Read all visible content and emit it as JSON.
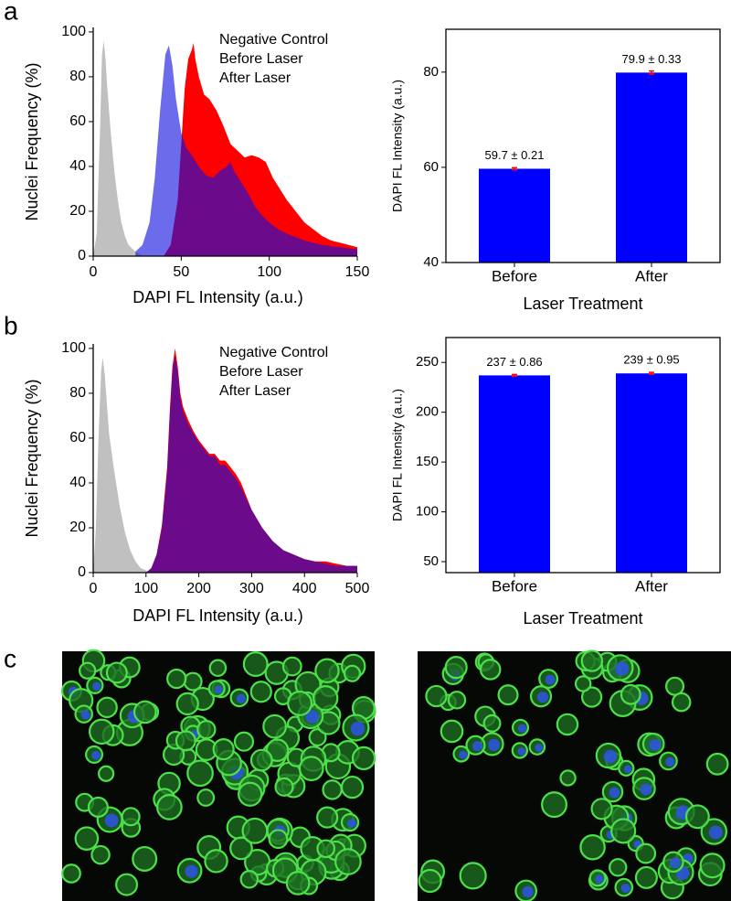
{
  "panel_labels": [
    "a",
    "b",
    "c"
  ],
  "chart_data": [
    {
      "type": "area",
      "xlabel": "DAPI FL Intensity (a.u.)",
      "ylabel": "Nuclei Frequency (%)",
      "xlim": [
        0,
        150
      ],
      "xticks": [
        0,
        50,
        100,
        150
      ],
      "ylim": [
        0,
        102
      ],
      "yticks": [
        0,
        20,
        40,
        60,
        80,
        100
      ],
      "series": [
        {
          "name": "Negative Control",
          "color": "#c0c0c0",
          "x": [
            0,
            2,
            4,
            5,
            6,
            7,
            8,
            10,
            12,
            14,
            16,
            18,
            20,
            24,
            28
          ],
          "values": [
            0,
            10,
            60,
            90,
            96,
            88,
            75,
            55,
            38,
            25,
            15,
            9,
            5,
            2,
            0
          ]
        },
        {
          "name": "Before Laser",
          "color": "#1010e0",
          "x": [
            24,
            28,
            32,
            35,
            38,
            41,
            43,
            45,
            47,
            50,
            53,
            56,
            60,
            64,
            68,
            72,
            76,
            78,
            80,
            84,
            88,
            92,
            96,
            100,
            105,
            110,
            120,
            130,
            140,
            150
          ],
          "values": [
            2,
            5,
            15,
            35,
            65,
            90,
            94,
            85,
            70,
            55,
            48,
            45,
            40,
            36,
            35,
            38,
            40,
            42,
            38,
            33,
            28,
            22,
            18,
            15,
            12,
            10,
            7,
            5,
            4,
            3
          ]
        },
        {
          "name": "After Laser",
          "color": "#ff0000",
          "x": [
            40,
            44,
            48,
            50,
            52,
            54,
            56,
            57,
            58,
            60,
            63,
            66,
            70,
            74,
            78,
            82,
            86,
            90,
            94,
            98,
            102,
            106,
            110,
            115,
            120,
            125,
            130,
            135,
            140,
            145,
            150
          ],
          "values": [
            0,
            5,
            25,
            50,
            75,
            88,
            92,
            95,
            88,
            80,
            72,
            70,
            65,
            58,
            50,
            47,
            44,
            45,
            44,
            42,
            35,
            30,
            25,
            20,
            15,
            12,
            9,
            7,
            6,
            5,
            4
          ]
        }
      ]
    },
    {
      "type": "bar",
      "xlabel": "Laser Treatment",
      "ylabel": "DAPI FL Intensity (a.u.)",
      "categories": [
        "Before",
        "After"
      ],
      "values": [
        59.7,
        79.9
      ],
      "errors": [
        0.21,
        0.33
      ],
      "value_labels": [
        "59.7 ± 0.21",
        "79.9 ± 0.33"
      ],
      "color": "#0000ff",
      "error_color": "#ff0000",
      "ylim": [
        40,
        89
      ],
      "yticks": [
        40,
        60,
        80
      ]
    },
    {
      "type": "area",
      "xlabel": "DAPI FL Intensity (a.u.)",
      "ylabel": "Nuclei Frequency (%)",
      "xlim": [
        0,
        500
      ],
      "xticks": [
        0,
        100,
        200,
        300,
        400,
        500
      ],
      "ylim": [
        0,
        102
      ],
      "yticks": [
        0,
        20,
        40,
        60,
        80,
        100
      ],
      "series": [
        {
          "name": "Negative Control",
          "color": "#c0c0c0",
          "x": [
            0,
            5,
            10,
            15,
            18,
            22,
            26,
            30,
            40,
            50,
            60,
            70,
            80,
            90,
            100,
            110
          ],
          "values": [
            0,
            20,
            60,
            90,
            96,
            88,
            75,
            62,
            45,
            30,
            18,
            10,
            5,
            2,
            1,
            0
          ]
        },
        {
          "name": "Before Laser",
          "color": "#1010e0",
          "x": [
            100,
            110,
            120,
            130,
            140,
            145,
            150,
            155,
            160,
            165,
            170,
            180,
            190,
            200,
            210,
            220,
            230,
            240,
            250,
            260,
            270,
            280,
            290,
            300,
            320,
            340,
            360,
            380,
            400,
            420,
            440,
            460,
            480,
            500
          ],
          "values": [
            0,
            2,
            8,
            20,
            45,
            70,
            90,
            97,
            90,
            78,
            72,
            66,
            62,
            58,
            55,
            52,
            52,
            48,
            48,
            45,
            42,
            38,
            33,
            28,
            20,
            14,
            10,
            8,
            6,
            5,
            4,
            3,
            3,
            3
          ]
        },
        {
          "name": "After Laser",
          "color": "#ff0000",
          "x": [
            100,
            110,
            120,
            130,
            140,
            145,
            150,
            155,
            160,
            165,
            170,
            180,
            190,
            200,
            210,
            220,
            230,
            240,
            250,
            260,
            270,
            280,
            290,
            300,
            320,
            340,
            360,
            380,
            400,
            420,
            440,
            460,
            480,
            500
          ],
          "values": [
            0,
            2,
            8,
            21,
            47,
            72,
            92,
            100,
            92,
            80,
            74,
            68,
            63,
            59,
            56,
            53,
            53,
            50,
            50,
            47,
            44,
            40,
            34,
            28,
            20,
            14,
            10,
            8,
            6,
            5,
            5,
            4,
            3,
            3
          ]
        }
      ]
    },
    {
      "type": "bar",
      "xlabel": "Laser Treatment",
      "ylabel": "DAPI FL Intensity (a.u.)",
      "categories": [
        "Before",
        "After"
      ],
      "values": [
        237,
        239
      ],
      "errors": [
        0.86,
        0.95
      ],
      "value_labels": [
        "237 ± 0.86",
        "239 ± 0.95"
      ],
      "color": "#0000ff",
      "error_color": "#ff0000",
      "ylim": [
        39,
        275
      ],
      "yticks": [
        50,
        100,
        150,
        200,
        250
      ]
    }
  ]
}
